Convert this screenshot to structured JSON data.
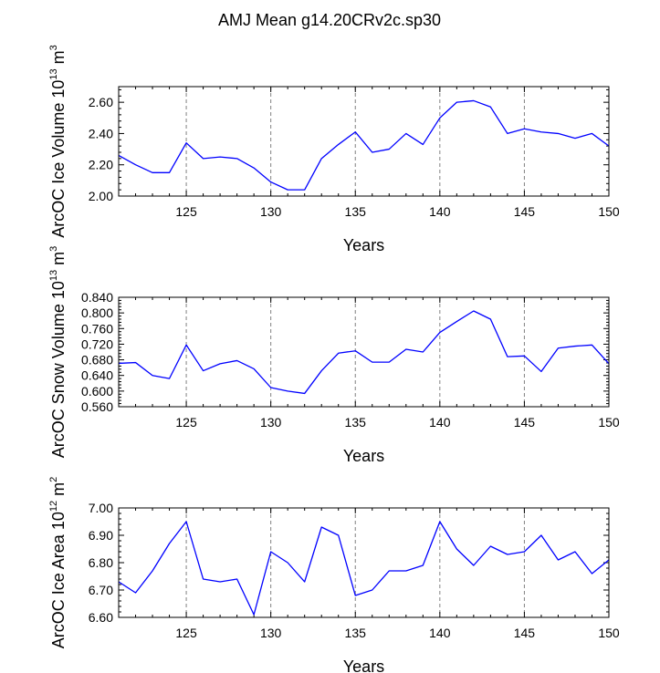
{
  "title": "AMJ Mean g14.20CRv2c.sp30",
  "colors": {
    "series": "#0000ff",
    "grid": "#808080",
    "axis": "#000000"
  },
  "chart_data": [
    {
      "type": "line",
      "ylabel_main": "ArcOC Ice Volume 10",
      "ylabel_exp": "13",
      "ylabel_unit": " m",
      "ylabel_unit_exp": "3",
      "xlabel": "Years",
      "xlim": [
        121,
        150
      ],
      "ylim": [
        2.0,
        2.7
      ],
      "xticks": [
        "125",
        "130",
        "135",
        "140",
        "145",
        "150"
      ],
      "yticks": [
        "2.00",
        "2.20",
        "2.40",
        "2.60"
      ],
      "x": [
        121,
        122,
        123,
        124,
        125,
        126,
        127,
        128,
        129,
        130,
        131,
        132,
        133,
        134,
        135,
        136,
        137,
        138,
        139,
        140,
        141,
        142,
        143,
        144,
        145,
        146,
        147,
        148,
        149,
        150
      ],
      "values": [
        2.26,
        2.2,
        2.15,
        2.15,
        2.34,
        2.24,
        2.25,
        2.24,
        2.18,
        2.09,
        2.04,
        2.04,
        2.24,
        2.33,
        2.41,
        2.28,
        2.3,
        2.4,
        2.33,
        2.5,
        2.6,
        2.61,
        2.57,
        2.4,
        2.43,
        2.41,
        2.4,
        2.37,
        2.4,
        2.32
      ]
    },
    {
      "type": "line",
      "ylabel_main": "ArcOC Snow Volume 10",
      "ylabel_exp": "13",
      "ylabel_unit": " m",
      "ylabel_unit_exp": "3",
      "xlabel": "Years",
      "xlim": [
        121,
        150
      ],
      "ylim": [
        0.56,
        0.84
      ],
      "xticks": [
        "125",
        "130",
        "135",
        "140",
        "145",
        "150"
      ],
      "yticks": [
        "0.560",
        "0.600",
        "0.640",
        "0.680",
        "0.720",
        "0.760",
        "0.800",
        "0.840"
      ],
      "x": [
        121,
        122,
        123,
        124,
        125,
        126,
        127,
        128,
        129,
        130,
        131,
        132,
        133,
        134,
        135,
        136,
        137,
        138,
        139,
        140,
        141,
        142,
        143,
        144,
        145,
        146,
        147,
        148,
        149,
        150
      ],
      "values": [
        0.671,
        0.673,
        0.64,
        0.632,
        0.718,
        0.652,
        0.67,
        0.678,
        0.657,
        0.609,
        0.6,
        0.594,
        0.652,
        0.697,
        0.703,
        0.674,
        0.674,
        0.707,
        0.7,
        0.75,
        0.778,
        0.805,
        0.784,
        0.688,
        0.69,
        0.65,
        0.71,
        0.715,
        0.718,
        0.67
      ]
    },
    {
      "type": "line",
      "ylabel_main": "ArcOC Ice Area 10",
      "ylabel_exp": "12",
      "ylabel_unit": " m",
      "ylabel_unit_exp": "2",
      "xlabel": "Years",
      "xlim": [
        121,
        150
      ],
      "ylim": [
        6.6,
        7.0
      ],
      "xticks": [
        "125",
        "130",
        "135",
        "140",
        "145",
        "150"
      ],
      "yticks": [
        "6.60",
        "6.70",
        "6.80",
        "6.90",
        "7.00"
      ],
      "x": [
        121,
        122,
        123,
        124,
        125,
        126,
        127,
        128,
        129,
        130,
        131,
        132,
        133,
        134,
        135,
        136,
        137,
        138,
        139,
        140,
        141,
        142,
        143,
        144,
        145,
        146,
        147,
        148,
        149,
        150
      ],
      "values": [
        6.73,
        6.69,
        6.77,
        6.87,
        6.95,
        6.74,
        6.73,
        6.74,
        6.61,
        6.84,
        6.8,
        6.73,
        6.93,
        6.9,
        6.68,
        6.7,
        6.77,
        6.77,
        6.79,
        6.95,
        6.85,
        6.79,
        6.86,
        6.83,
        6.84,
        6.9,
        6.81,
        6.84,
        6.76,
        6.81
      ]
    }
  ]
}
